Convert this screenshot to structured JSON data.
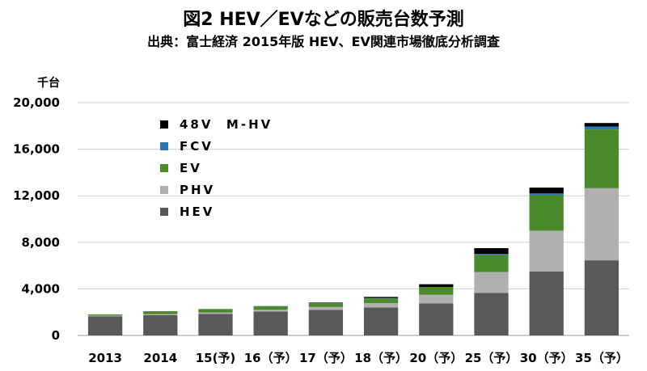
{
  "title": "図2  HEV／EVなどの販売台数予測",
  "subtitle": "出典：富士経済  2015年版  HEV、EV関連市場徹底分析調査",
  "unit_label": "千台",
  "chart_data": {
    "type": "bar",
    "stacked": true,
    "categories": [
      "2013",
      "2014",
      "15(予)",
      "16（予）",
      "17（予）",
      "18（予）",
      "20（予）",
      "25（予）",
      "30（予）",
      "35（予）"
    ],
    "ylim": [
      0,
      20000
    ],
    "yticks": [
      0,
      4000,
      8000,
      12000,
      16000,
      20000
    ],
    "ytick_labels": [
      "0",
      "4,000",
      "8,000",
      "12,000",
      "16,000",
      "20,000"
    ],
    "grid": true,
    "legend_position": "top-left",
    "series": [
      {
        "name": "HEV",
        "color": "#595959",
        "values": [
          1650,
          1750,
          1850,
          2050,
          2200,
          2400,
          2750,
          3650,
          5500,
          6450
        ]
      },
      {
        "name": "PHV",
        "color": "#b0b0b0",
        "values": [
          60,
          80,
          120,
          160,
          250,
          380,
          750,
          1800,
          3500,
          6200
        ]
      },
      {
        "name": "EV",
        "color": "#4a8a2a",
        "values": [
          100,
          250,
          300,
          300,
          300,
          400,
          600,
          1450,
          3050,
          5050
        ]
      },
      {
        "name": "FCV",
        "color": "#2e75b6",
        "values": [
          0,
          0,
          0,
          20,
          20,
          30,
          50,
          100,
          150,
          250
        ]
      },
      {
        "name": "48V  M-HV",
        "color": "#000000",
        "values": [
          0,
          0,
          0,
          0,
          50,
          100,
          250,
          500,
          500,
          300
        ]
      }
    ]
  },
  "legend": [
    {
      "label": "48V  M-HV",
      "color": "#000000"
    },
    {
      "label": "FCV",
      "color": "#2e75b6"
    },
    {
      "label": "EV",
      "color": "#4a8a2a"
    },
    {
      "label": "PHV",
      "color": "#b0b0b0"
    },
    {
      "label": "HEV",
      "color": "#595959"
    }
  ]
}
